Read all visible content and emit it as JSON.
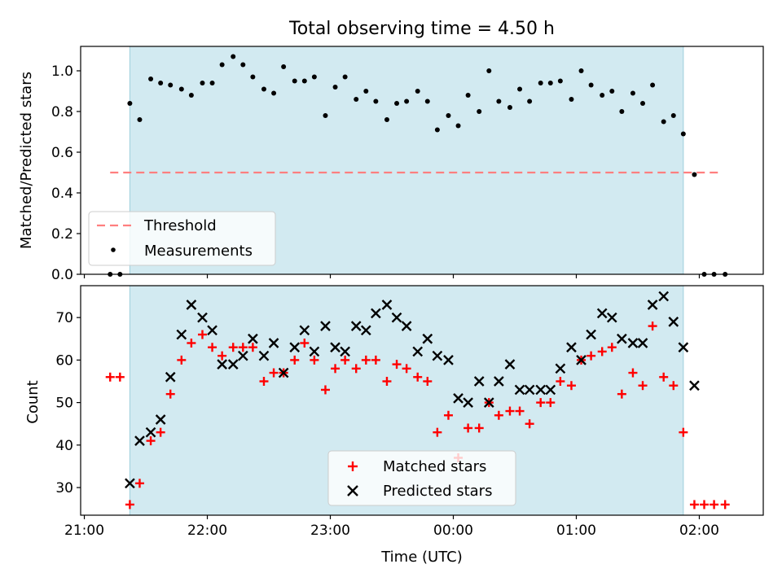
{
  "chart_data": [
    {
      "type": "scatter",
      "panel": "top",
      "title": "Total observing time = 4.50 h",
      "xlabel": "",
      "ylabel": "Matched/Predicted stars",
      "xlim": [
        -0.03,
        5.52
      ],
      "ylim": [
        0.0,
        1.12
      ],
      "yticks": [
        0.0,
        0.2,
        0.4,
        0.6,
        0.8,
        1.0
      ],
      "ytick_labels": [
        "0.0",
        "0.2",
        "0.4",
        "0.6",
        "0.8",
        "1.0"
      ],
      "grid": false,
      "legend": "lower-left",
      "shaded_interval": [
        0.37,
        4.87
      ],
      "shaded_color": "#add8e6",
      "threshold": {
        "name": "Threshold",
        "value": 0.5,
        "x_range": [
          0.21,
          5.18
        ],
        "color": "#ff7f7f"
      },
      "series": [
        {
          "name": "Measurements",
          "color": "#000000",
          "x": [
            0.21,
            0.29,
            0.37,
            0.45,
            0.54,
            0.62,
            0.7,
            0.79,
            0.87,
            0.96,
            1.04,
            1.12,
            1.21,
            1.29,
            1.37,
            1.46,
            1.54,
            1.62,
            1.71,
            1.79,
            1.87,
            1.96,
            2.04,
            2.12,
            2.21,
            2.29,
            2.37,
            2.46,
            2.54,
            2.62,
            2.71,
            2.79,
            2.87,
            2.96,
            3.04,
            3.12,
            3.21,
            3.29,
            3.37,
            3.46,
            3.54,
            3.62,
            3.71,
            3.79,
            3.87,
            3.96,
            4.04,
            4.12,
            4.21,
            4.29,
            4.37,
            4.46,
            4.54,
            4.62,
            4.71,
            4.79,
            4.87,
            4.96,
            5.04,
            5.12,
            5.21
          ],
          "y": [
            0.0,
            0.0,
            0.84,
            0.76,
            0.96,
            0.94,
            0.93,
            0.91,
            0.88,
            0.94,
            0.94,
            1.03,
            1.07,
            1.03,
            0.97,
            0.91,
            0.89,
            1.02,
            0.95,
            0.95,
            0.97,
            0.78,
            0.92,
            0.97,
            0.86,
            0.9,
            0.85,
            0.76,
            0.84,
            0.85,
            0.9,
            0.85,
            0.71,
            0.78,
            0.73,
            0.88,
            0.8,
            1.0,
            0.85,
            0.82,
            0.91,
            0.85,
            0.94,
            0.94,
            0.95,
            0.86,
            1.0,
            0.93,
            0.88,
            0.9,
            0.8,
            0.89,
            0.84,
            0.93,
            0.75,
            0.78,
            0.69,
            0.49,
            0.0,
            0.0,
            0.0
          ]
        }
      ]
    },
    {
      "type": "scatter",
      "panel": "bottom",
      "title": "",
      "xlabel": "Time (UTC)",
      "ylabel": "Count",
      "xlim": [
        -0.03,
        5.52
      ],
      "ylim": [
        23.5,
        77.5
      ],
      "xticks": [
        0,
        1,
        2,
        3,
        4,
        5
      ],
      "xtick_labels": [
        "21:00",
        "22:00",
        "23:00",
        "00:00",
        "01:00",
        "02:00"
      ],
      "yticks": [
        30,
        40,
        50,
        60,
        70
      ],
      "ytick_labels": [
        "30",
        "40",
        "50",
        "60",
        "70"
      ],
      "grid": false,
      "legend": "lower-center",
      "shaded_interval": [
        0.37,
        4.87
      ],
      "shaded_color": "#add8e6",
      "series": [
        {
          "name": "Matched stars",
          "marker": "plus",
          "color": "#ff0000",
          "x": [
            0.21,
            0.29,
            0.37,
            0.45,
            0.54,
            0.62,
            0.7,
            0.79,
            0.87,
            0.96,
            1.04,
            1.12,
            1.21,
            1.29,
            1.37,
            1.46,
            1.54,
            1.62,
            1.71,
            1.79,
            1.87,
            1.96,
            2.04,
            2.12,
            2.21,
            2.29,
            2.37,
            2.46,
            2.54,
            2.62,
            2.71,
            2.79,
            2.87,
            2.96,
            3.04,
            3.12,
            3.21,
            3.29,
            3.37,
            3.46,
            3.54,
            3.62,
            3.71,
            3.79,
            3.87,
            3.96,
            4.04,
            4.12,
            4.21,
            4.29,
            4.37,
            4.46,
            4.54,
            4.62,
            4.71,
            4.79,
            4.87,
            4.96,
            5.04,
            5.12,
            5.21
          ],
          "y": [
            56,
            56,
            26,
            31,
            41,
            43,
            52,
            60,
            64,
            66,
            63,
            61,
            63,
            63,
            63,
            55,
            57,
            57,
            60,
            64,
            60,
            53,
            58,
            60,
            58,
            60,
            60,
            55,
            59,
            58,
            56,
            55,
            43,
            47,
            37,
            44,
            44,
            50,
            47,
            48,
            48,
            45,
            50,
            50,
            55,
            54,
            60,
            61,
            62,
            63,
            52,
            57,
            54,
            68,
            56,
            54,
            43,
            26,
            26,
            26,
            26
          ]
        },
        {
          "name": "Predicted stars",
          "marker": "x",
          "color": "#000000",
          "x": [
            0.37,
            0.45,
            0.54,
            0.62,
            0.7,
            0.79,
            0.87,
            0.96,
            1.04,
            1.12,
            1.21,
            1.29,
            1.37,
            1.46,
            1.54,
            1.62,
            1.71,
            1.79,
            1.87,
            1.96,
            2.04,
            2.12,
            2.21,
            2.29,
            2.37,
            2.46,
            2.54,
            2.62,
            2.71,
            2.79,
            2.87,
            2.96,
            3.04,
            3.12,
            3.21,
            3.29,
            3.37,
            3.46,
            3.54,
            3.62,
            3.71,
            3.79,
            3.87,
            3.96,
            4.04,
            4.12,
            4.21,
            4.29,
            4.37,
            4.46,
            4.54,
            4.62,
            4.71,
            4.79,
            4.87,
            4.96
          ],
          "y": [
            31,
            41,
            43,
            46,
            56,
            66,
            73,
            70,
            67,
            59,
            59,
            61,
            65,
            61,
            64,
            57,
            63,
            67,
            62,
            68,
            63,
            62,
            68,
            67,
            71,
            73,
            70,
            68,
            62,
            65,
            61,
            60,
            51,
            50,
            55,
            50,
            55,
            59,
            53,
            53,
            53,
            53,
            58,
            63,
            60,
            66,
            71,
            70,
            65,
            64,
            64,
            73,
            75,
            69,
            63,
            54
          ]
        }
      ]
    }
  ]
}
